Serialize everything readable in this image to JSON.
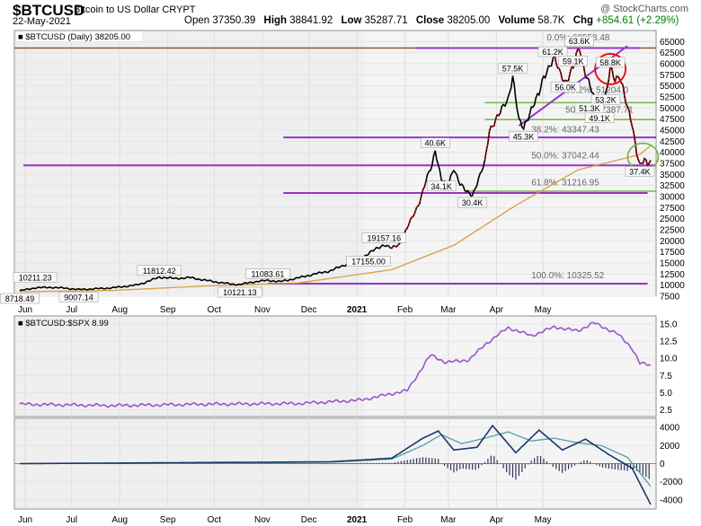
{
  "header": {
    "symbol": "$BTCUSD",
    "name": "Bitcoin to US Dollar  CRYPT",
    "date": "22-May-2021",
    "open_label": "Open",
    "open": "37350.39",
    "high_label": "High",
    "high": "38841.92",
    "low_label": "Low",
    "low": "35287.71",
    "close_label": "Close",
    "close": "38205.00",
    "volume_label": "Volume",
    "volume": "58.7K",
    "chg_label": "Chg",
    "chg": "+854.61 (+2.29%)",
    "watermark": "@ StockCharts.com"
  },
  "colors": {
    "price": "#000000",
    "up": "#cc0000",
    "ma": "#d4a040",
    "fib": "#7ab648",
    "purple": "#9933cc",
    "ratio": "#9955cc",
    "macd": "#1a3a6a",
    "signal": "#50a0a0",
    "hist": "#333355"
  },
  "chart_data": [
    {
      "type": "line",
      "legend": "$BTCUSD (Daily) 38205.00",
      "ylim": [
        7500,
        67500
      ],
      "y_ticks": [
        7500,
        10000,
        12500,
        15000,
        17500,
        20000,
        22500,
        25000,
        27500,
        30000,
        32500,
        35000,
        37500,
        40000,
        42500,
        45000,
        47500,
        50000,
        52500,
        55000,
        57500,
        60000,
        62500,
        65000
      ],
      "x_labels": [
        "Jun",
        "Jul",
        "Aug",
        "Sep",
        "Oct",
        "Nov",
        "Dec",
        "2021",
        "Feb",
        "Mar",
        "Apr",
        "May"
      ],
      "series": [
        {
          "values": [
            [
              0,
              8718
            ],
            [
              10,
              9400
            ],
            [
              20,
              9500
            ],
            [
              30,
              9300
            ],
            [
              38,
              9007
            ],
            [
              50,
              9200
            ],
            [
              60,
              9400
            ],
            [
              75,
              10000
            ],
            [
              80,
              10500
            ],
            [
              90,
              11800
            ],
            [
              100,
              11500
            ],
            [
              110,
              11700
            ],
            [
              118,
              11200
            ],
            [
              125,
              10800
            ],
            [
              135,
              10300
            ],
            [
              142,
              10121
            ],
            [
              150,
              10700
            ],
            [
              160,
              11083
            ],
            [
              168,
              10800
            ],
            [
              178,
              11500
            ],
            [
              190,
              12500
            ],
            [
              200,
              13200
            ],
            [
              210,
              14600
            ],
            [
              218,
              15600
            ],
            [
              225,
              17155
            ],
            [
              230,
              18200
            ],
            [
              235,
              19157
            ],
            [
              240,
              18300
            ],
            [
              245,
              19300
            ],
            [
              250,
              23000
            ],
            [
              255,
              26500
            ],
            [
              258,
              29000
            ],
            [
              262,
              33500
            ],
            [
              266,
              37000
            ],
            [
              268,
              40600
            ],
            [
              272,
              34100
            ],
            [
              276,
              32000
            ],
            [
              280,
              36500
            ],
            [
              284,
              33000
            ],
            [
              288,
              31000
            ],
            [
              292,
              30400
            ],
            [
              296,
              34000
            ],
            [
              300,
              37500
            ],
            [
              303,
              45000
            ],
            [
              307,
              47500
            ],
            [
              311,
              49500
            ],
            [
              315,
              52000
            ],
            [
              318,
              57500
            ],
            [
              322,
              47000
            ],
            [
              325,
              45300
            ],
            [
              330,
              50000
            ],
            [
              335,
              53000
            ],
            [
              338,
              57000
            ],
            [
              342,
              60000
            ],
            [
              345,
              61200
            ],
            [
              348,
              58000
            ],
            [
              352,
              56000
            ],
            [
              357,
              59100
            ],
            [
              361,
              63600
            ],
            [
              365,
              58000
            ],
            [
              368,
              55000
            ],
            [
              371,
              51300
            ],
            [
              374,
              49100
            ],
            [
              378,
              53200
            ],
            [
              381,
              58800
            ],
            [
              384,
              56000
            ],
            [
              387,
              57500
            ],
            [
              389,
              55000
            ],
            [
              392,
              50000
            ],
            [
              395,
              46000
            ],
            [
              398,
              40000
            ],
            [
              400,
              37400
            ],
            [
              403,
              38500
            ],
            [
              405,
              37000
            ],
            [
              407,
              38205
            ]
          ]
        },
        {
          "name": "MA",
          "values": [
            [
              0,
              8500
            ],
            [
              60,
              8800
            ],
            [
              120,
              9800
            ],
            [
              180,
              10500
            ],
            [
              240,
              13500
            ],
            [
              280,
              19000
            ],
            [
              320,
              28000
            ],
            [
              360,
              36000
            ],
            [
              400,
              39500
            ],
            [
              407,
              41500
            ]
          ]
        }
      ],
      "annotations": [
        "63.6K",
        "61.2K",
        "59.1K",
        "57.5K",
        "58.8K",
        "56.0K",
        "53.2K",
        "51.3K",
        "49.1K",
        "45.3K",
        "40.6K",
        "34.1K",
        "30.4K",
        "37.4K",
        "19157.16",
        "17155.00",
        "11812.42",
        "11083.61",
        "10211.23",
        "10121.13",
        "9007.14",
        "8718.49"
      ],
      "fib_labels": [
        "0.0%: 63558.48",
        "38.2%: 51204.0",
        "50.0%: 47387.71",
        "38.2%: 43347.43",
        "50.0%: 37042.44",
        "61.8%: 31216.95",
        "100.0%: 10325.52"
      ]
    },
    {
      "type": "line",
      "legend": "$BTCUSD:$SPX 8.99",
      "ylim": [
        2.5,
        15
      ],
      "y_ticks": [
        2.5,
        5,
        7.5,
        10,
        12.5,
        15
      ],
      "series": [
        {
          "name": "$BTCUSD:$SPX",
          "values": [
            [
              0,
              3.3
            ],
            [
              60,
              3.1
            ],
            [
              120,
              3.3
            ],
            [
              180,
              3.4
            ],
            [
              220,
              3.9
            ],
            [
              250,
              5.3
            ],
            [
              265,
              10.5
            ],
            [
              275,
              9.4
            ],
            [
              290,
              9.8
            ],
            [
              300,
              12
            ],
            [
              315,
              14.5
            ],
            [
              330,
              13.3
            ],
            [
              345,
              14.6
            ],
            [
              360,
              14
            ],
            [
              370,
              15.2
            ],
            [
              385,
              13.7
            ],
            [
              395,
              11.5
            ],
            [
              400,
              9.3
            ],
            [
              407,
              8.99
            ]
          ]
        }
      ]
    },
    {
      "type": "line",
      "ylim": [
        -5000,
        5000
      ],
      "y_ticks": [
        -4000,
        -2000,
        0,
        2000,
        4000
      ],
      "series": [
        {
          "name": "MACD",
          "values": [
            [
              0,
              0
            ],
            [
              200,
              200
            ],
            [
              240,
              600
            ],
            [
              260,
              2800
            ],
            [
              270,
              3600
            ],
            [
              280,
              1500
            ],
            [
              295,
              1800
            ],
            [
              305,
              4200
            ],
            [
              320,
              1200
            ],
            [
              335,
              3700
            ],
            [
              350,
              1500
            ],
            [
              365,
              2700
            ],
            [
              380,
              1000
            ],
            [
              395,
              -500
            ],
            [
              407,
              -4500
            ]
          ]
        },
        {
          "name": "Signal",
          "values": [
            [
              0,
              0
            ],
            [
              200,
              150
            ],
            [
              240,
              500
            ],
            [
              260,
              2000
            ],
            [
              272,
              3200
            ],
            [
              285,
              2200
            ],
            [
              300,
              2800
            ],
            [
              315,
              3500
            ],
            [
              330,
              2500
            ],
            [
              345,
              2800
            ],
            [
              360,
              2300
            ],
            [
              375,
              2000
            ],
            [
              392,
              700
            ],
            [
              407,
              -2500
            ]
          ]
        }
      ]
    }
  ]
}
